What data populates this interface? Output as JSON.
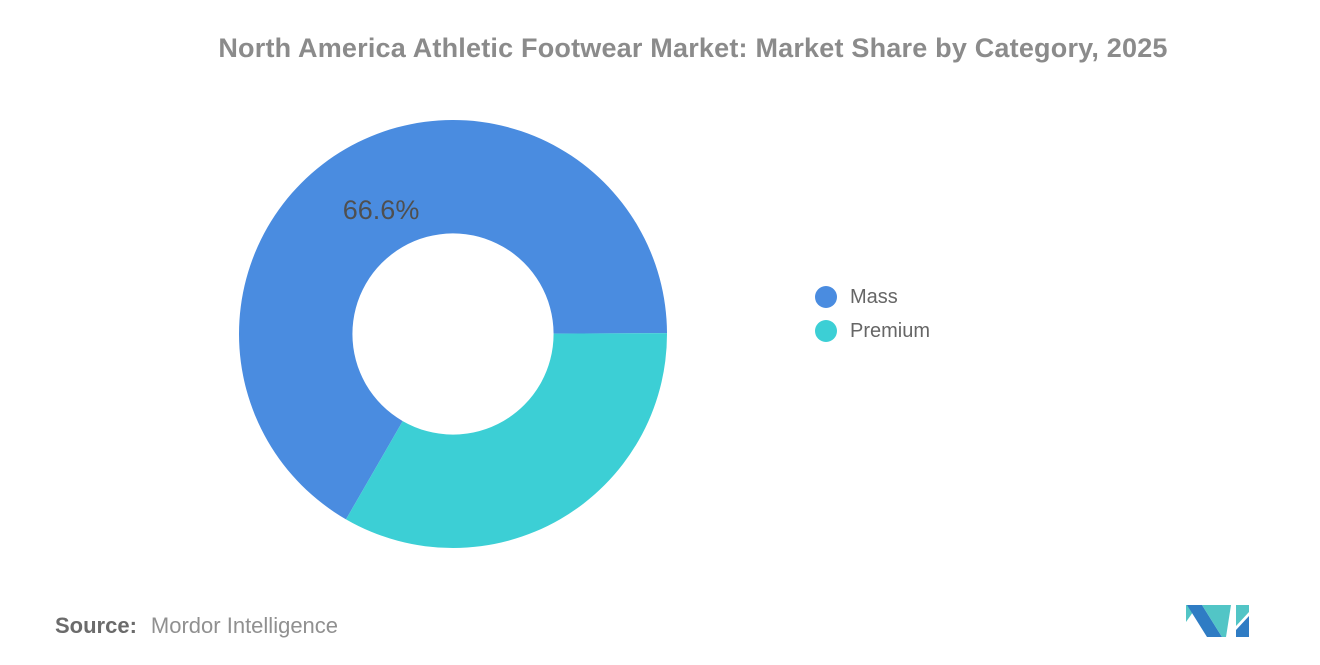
{
  "chart_data": {
    "type": "pie",
    "subtype": "donut",
    "title": "North America Athletic Footwear Market: Market Share by Category, 2025",
    "categories": [
      "Mass",
      "Premium"
    ],
    "values": [
      66.6,
      33.4
    ],
    "colors": [
      "#4A8CE0",
      "#3CCFD5"
    ],
    "slice_labels": [
      "66.6%",
      ""
    ],
    "legend_position": "right",
    "rotation_deg_from_top": 210,
    "direction": "clockwise",
    "inner_radius_ratio": 0.47,
    "background": "#ffffff"
  },
  "source": {
    "prefix": "Source:",
    "text": "Mordor Intelligence"
  },
  "branding": {
    "logo_name": "mordor-intelligence-logo",
    "logo_teal": "#52C5C6",
    "logo_blue": "#2F7CC4"
  }
}
